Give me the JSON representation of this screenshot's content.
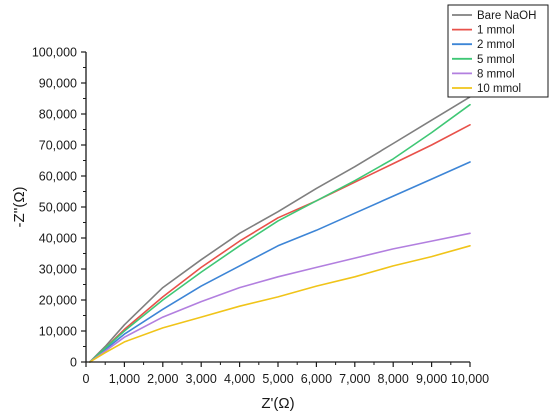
{
  "chart_data": {
    "type": "line",
    "title": "",
    "xlabel": "Z'(Ω)",
    "ylabel": "-Z''(Ω)",
    "xlim": [
      0,
      10000
    ],
    "ylim": [
      0,
      100000
    ],
    "xticks": [
      0,
      1000,
      2000,
      3000,
      4000,
      5000,
      6000,
      7000,
      8000,
      9000,
      10000
    ],
    "xtick_labels": [
      "0",
      "1,000",
      "2,000",
      "3,000",
      "4,000",
      "5,000",
      "6,000",
      "7,000",
      "8,000",
      "9,000",
      "10,000"
    ],
    "yticks": [
      0,
      10000,
      20000,
      30000,
      40000,
      50000,
      60000,
      70000,
      80000,
      90000,
      100000
    ],
    "ytick_labels": [
      "0",
      "10,000",
      "20,000",
      "30,000",
      "40,000",
      "50,000",
      "60,000",
      "70,000",
      "80,000",
      "90,000",
      "100,000"
    ],
    "grid": false,
    "legend_position": "top-right",
    "series": [
      {
        "name": "Bare NaOH",
        "color": "#7f7f7f",
        "x": [
          100,
          500,
          1000,
          2000,
          3000,
          4000,
          5000,
          6000,
          7000,
          8000,
          9000,
          10000
        ],
        "y": [
          0,
          5000,
          12000,
          24000,
          33000,
          41500,
          48500,
          56000,
          63000,
          70500,
          78000,
          85500
        ]
      },
      {
        "name": "1 mmol",
        "color": "#e8514a",
        "x": [
          100,
          500,
          1000,
          2000,
          3000,
          4000,
          5000,
          6000,
          7000,
          8000,
          9000,
          10000
        ],
        "y": [
          0,
          4500,
          10500,
          21000,
          30500,
          39000,
          46500,
          52000,
          58000,
          64000,
          70000,
          76500
        ]
      },
      {
        "name": "2 mmol",
        "color": "#3d85d6",
        "x": [
          100,
          500,
          1000,
          2000,
          3000,
          4000,
          5000,
          6000,
          7000,
          8000,
          9000,
          10000
        ],
        "y": [
          0,
          4000,
          9000,
          17000,
          24500,
          31000,
          37500,
          42500,
          48000,
          53500,
          59000,
          64500
        ]
      },
      {
        "name": "5 mmol",
        "color": "#3fc775",
        "x": [
          100,
          500,
          1000,
          2000,
          3000,
          4000,
          5000,
          6000,
          7000,
          8000,
          9000,
          10000
        ],
        "y": [
          0,
          4500,
          10000,
          20000,
          29000,
          37500,
          45500,
          52000,
          58500,
          65500,
          74000,
          83000
        ]
      },
      {
        "name": "8 mmol",
        "color": "#b27fdf",
        "x": [
          100,
          500,
          1000,
          2000,
          3000,
          4000,
          5000,
          6000,
          7000,
          8000,
          9000,
          10000
        ],
        "y": [
          0,
          3500,
          8000,
          14500,
          19500,
          24000,
          27500,
          30500,
          33500,
          36500,
          39000,
          41500
        ]
      },
      {
        "name": "10 mmol",
        "color": "#f0c419",
        "x": [
          100,
          500,
          1000,
          2000,
          3000,
          4000,
          5000,
          6000,
          7000,
          8000,
          9000,
          10000
        ],
        "y": [
          0,
          3000,
          6500,
          11000,
          14500,
          18000,
          21000,
          24500,
          27500,
          31000,
          34000,
          37500
        ]
      }
    ]
  }
}
